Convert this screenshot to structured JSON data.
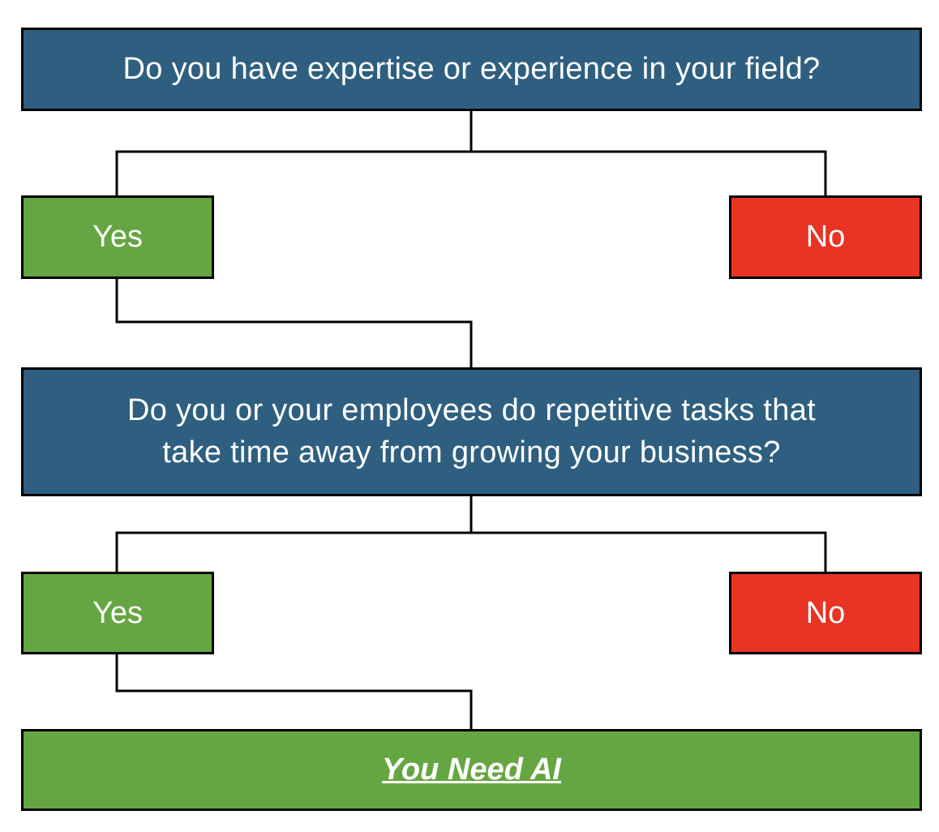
{
  "question1": "Do you have expertise or experience in your field?",
  "answer1_yes": "Yes",
  "answer1_no": "No",
  "question2_line1": "Do you or your employees do repetitive tasks that",
  "question2_line2": "take time away from growing your business?",
  "answer2_yes": "Yes",
  "answer2_no": "No",
  "result": "You Need AI",
  "colors": {
    "question_fill": "#2f5f80",
    "yes_fill": "#65a642",
    "no_fill": "#e93323",
    "result_fill": "#65a642",
    "border": "#000000",
    "text": "#ffffff"
  }
}
